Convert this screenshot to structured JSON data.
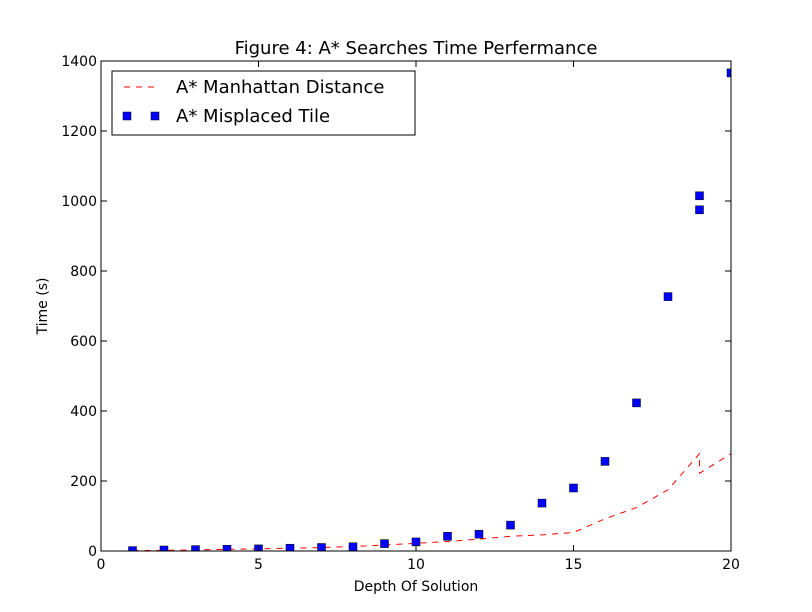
{
  "chart_data": {
    "type": "line",
    "title": "Figure 4: A* Searches Time Perfermance",
    "xlabel": "Depth Of Solution",
    "ylabel": "Time (s)",
    "xlim": [
      0,
      20
    ],
    "ylim": [
      0,
      1400
    ],
    "xticks": [
      0,
      5,
      10,
      15,
      20
    ],
    "yticks": [
      0,
      200,
      400,
      600,
      800,
      1000,
      1200,
      1400
    ],
    "grid": false,
    "legend_position": "top-left",
    "series": [
      {
        "name": "A* Manhattan Distance",
        "style": "dashed-line",
        "color": "#ff0000",
        "points": [
          [
            1,
            1
          ],
          [
            2,
            2
          ],
          [
            3,
            3
          ],
          [
            4,
            5
          ],
          [
            5,
            6
          ],
          [
            6,
            8
          ],
          [
            7,
            10
          ],
          [
            8,
            13
          ],
          [
            9,
            17
          ],
          [
            10,
            22
          ],
          [
            11,
            27
          ],
          [
            12,
            34
          ],
          [
            13,
            42
          ],
          [
            14,
            46
          ],
          [
            15,
            53
          ],
          [
            16,
            92
          ],
          [
            17,
            124
          ],
          [
            18,
            175
          ],
          [
            19,
            278
          ],
          [
            19,
            222
          ],
          [
            20,
            278
          ]
        ]
      },
      {
        "name": "A* Misplaced Tile",
        "style": "square-markers",
        "color": "#0000ff",
        "points": [
          [
            1,
            1
          ],
          [
            2,
            3
          ],
          [
            3,
            4
          ],
          [
            4,
            5
          ],
          [
            5,
            6
          ],
          [
            6,
            8
          ],
          [
            7,
            10
          ],
          [
            8,
            12
          ],
          [
            9,
            21
          ],
          [
            10,
            26
          ],
          [
            11,
            42
          ],
          [
            12,
            48
          ],
          [
            13,
            74
          ],
          [
            14,
            137
          ],
          [
            15,
            180
          ],
          [
            16,
            256
          ],
          [
            17,
            423
          ],
          [
            18,
            727
          ],
          [
            19,
            1015
          ],
          [
            19,
            975
          ],
          [
            20,
            1366
          ]
        ]
      }
    ]
  }
}
